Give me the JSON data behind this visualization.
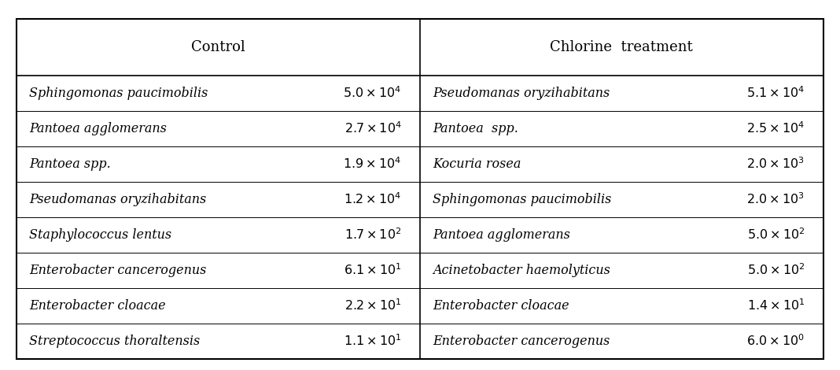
{
  "header_left": "Control",
  "header_right": "Chlorine  treatment",
  "control_rows": [
    {
      "organism": "Sphingomonas paucimobilis",
      "coeff": "5.0",
      "exp": "4"
    },
    {
      "organism": "Pantoea agglomerans",
      "coeff": "2.7",
      "exp": "4"
    },
    {
      "organism": "Pantoea spp.",
      "coeff": "1.9",
      "exp": "4"
    },
    {
      "organism": "Pseudomanas oryzihabitans",
      "coeff": "1.2",
      "exp": "4"
    },
    {
      "organism": "Staphylococcus lentus",
      "coeff": "1.7",
      "exp": "2"
    },
    {
      "organism": "Enterobacter cancerogenus",
      "coeff": "6.1",
      "exp": "1"
    },
    {
      "organism": "Enterobacter cloacae",
      "coeff": "2.2",
      "exp": "1"
    },
    {
      "organism": "Streptococcus thoraltensis",
      "coeff": "1.1",
      "exp": "1"
    }
  ],
  "chlorine_rows": [
    {
      "organism": "Pseudomanas oryzihabitans",
      "coeff": "5.1",
      "exp": "4"
    },
    {
      "organism": "Pantoea  spp.",
      "coeff": "2.5",
      "exp": "4"
    },
    {
      "organism": "Kocuria rosea",
      "coeff": "2.0",
      "exp": "3"
    },
    {
      "organism": "Sphingomonas paucimobilis",
      "coeff": "2.0",
      "exp": "3"
    },
    {
      "organism": "Pantoea agglomerans",
      "coeff": "5.0",
      "exp": "2"
    },
    {
      "organism": "Acinetobacter haemolyticus",
      "coeff": "5.0",
      "exp": "2"
    },
    {
      "organism": "Enterobacter cloacae",
      "coeff": "1.4",
      "exp": "1"
    },
    {
      "organism": "Enterobacter cancerogenus",
      "coeff": "6.0",
      "exp": "0"
    }
  ],
  "bg_color": "#ffffff",
  "border_color": "#000000",
  "text_color": "#000000",
  "header_fontsize": 13,
  "cell_fontsize": 11.5
}
